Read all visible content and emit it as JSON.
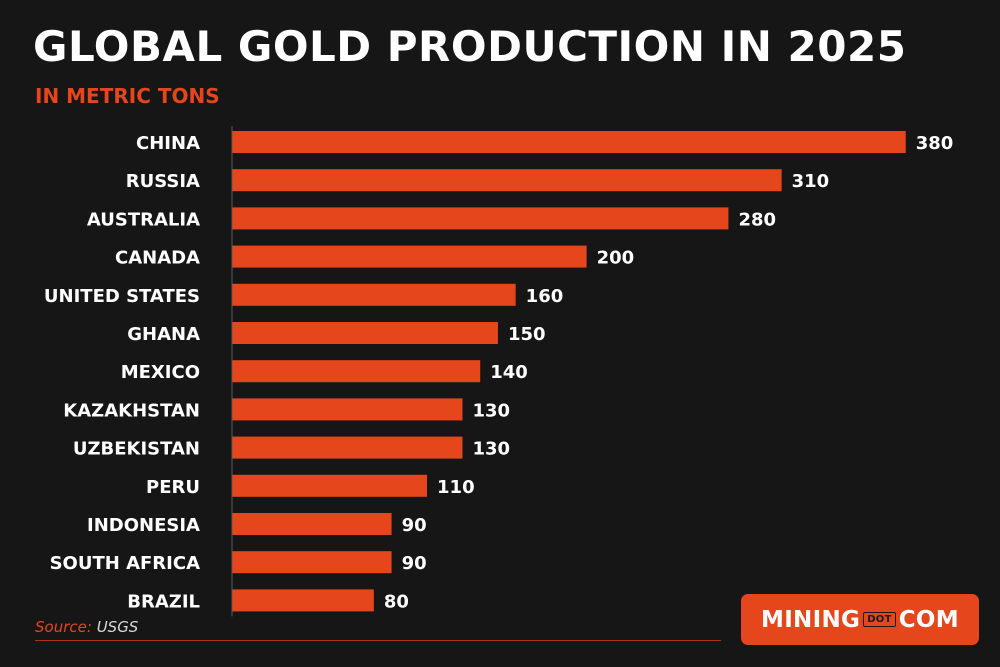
{
  "title": "GLOBAL GOLD PRODUCTION IN 2025",
  "subtitle": "IN METRIC TONS",
  "source_label": "Source:",
  "source_value": "USGS",
  "logo": {
    "left": "MINING",
    "middle": "DOT",
    "right": "COM"
  },
  "colors": {
    "background": "#161616",
    "bar": "#e5461c",
    "accent": "#e5461c",
    "text": "#ffffff"
  },
  "chart_data": {
    "type": "bar",
    "orientation": "horizontal",
    "categories": [
      "CHINA",
      "RUSSIA",
      "AUSTRALIA",
      "CANADA",
      "UNITED STATES",
      "GHANA",
      "MEXICO",
      "KAZAKHSTAN",
      "UZBEKISTAN",
      "PERU",
      "INDONESIA",
      "SOUTH AFRICA",
      "BRAZIL"
    ],
    "values": [
      380,
      310,
      280,
      200,
      160,
      150,
      140,
      130,
      130,
      110,
      90,
      90,
      80
    ],
    "data_labels": [
      "380",
      "310",
      "280",
      "200",
      "160",
      "150",
      "140",
      "130",
      "130",
      "110",
      "90",
      "90",
      "80"
    ],
    "title": "GLOBAL GOLD PRODUCTION IN 2025",
    "subtitle": "IN METRIC TONS",
    "xlabel": "",
    "ylabel": "",
    "grid": false,
    "legend": "none"
  }
}
